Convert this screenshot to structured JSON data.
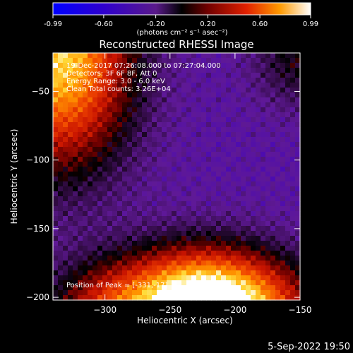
{
  "chart_data": {
    "type": "heatmap",
    "title": "Reconstructed RHESSI Image",
    "xlabel": "Heliocentric X (arcsec)",
    "ylabel": "Heliocentric Y (arcsec)",
    "xlim": [
      -340,
      -150
    ],
    "ylim": [
      -202,
      -22
    ],
    "xticks": [
      -300,
      -250,
      -200,
      -150
    ],
    "yticks": [
      -50,
      -100,
      -150,
      -200
    ],
    "colorbar": {
      "min": -0.99,
      "max": 0.99,
      "ticks": [
        -0.99,
        -0.6,
        -0.2,
        0.2,
        0.6,
        0.99
      ],
      "tick_labels": [
        "-0.99",
        "-0.60",
        "-0.20",
        "0.20",
        "0.60",
        "0.99"
      ],
      "label": "(photons cm⁻² s⁻¹ asec⁻²)"
    },
    "annotations": [
      "19-Dec-2017 07:26:08.000 to 07:27:04.000",
      "Detectors: 3F 6F 8F, Att 0",
      "Energy Range: 3.0 - 6.0 keV",
      "Clean      Total counts: 3.26E+04"
    ],
    "peak_label": "Position of Peak = [-331,-17]",
    "sources": [
      {
        "x": -335,
        "y": -25,
        "sx": 38,
        "sy": 55,
        "amp": 1.25
      },
      {
        "x": -235,
        "y": -205,
        "sx": 38,
        "sy": 28,
        "amp": 1.2
      },
      {
        "x": -190,
        "y": -210,
        "sx": 40,
        "sy": 28,
        "amp": 0.85
      },
      {
        "x": -300,
        "y": -210,
        "sx": 32,
        "sy": 25,
        "amp": 0.6
      },
      {
        "x": -150,
        "y": -25,
        "sx": 25,
        "sy": 25,
        "amp": 0.35
      }
    ],
    "background": -0.35,
    "grid": false
  },
  "footer": {
    "date": "5-Sep-2022 19:50"
  }
}
